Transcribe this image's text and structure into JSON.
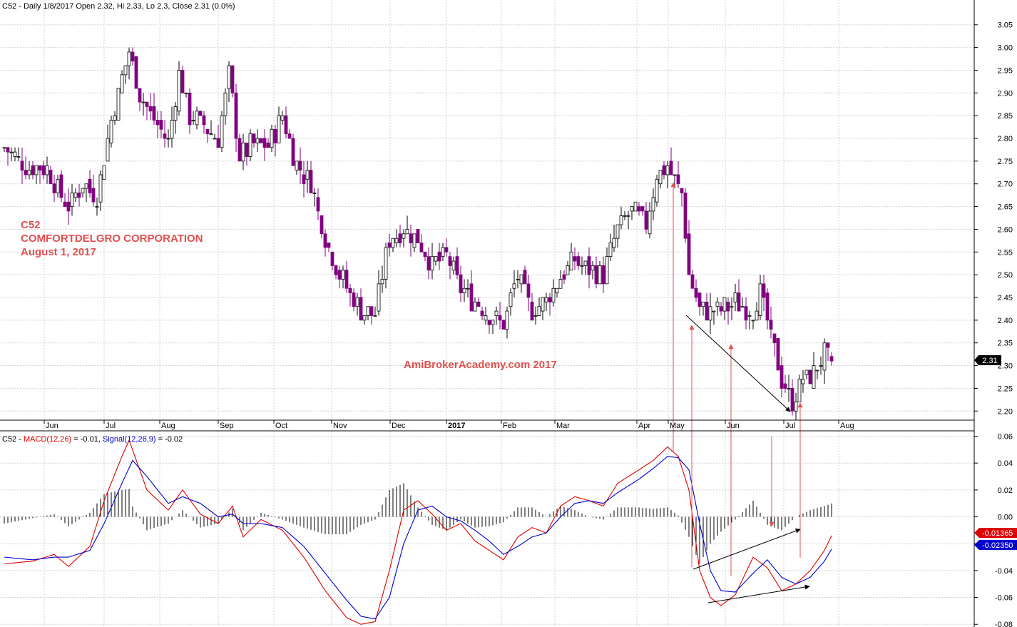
{
  "price_header": "C52 - Daily 1/8/2017 Open 2.32, Hi 2.33, Lo 2.3, Close 2.31 (0.0%)",
  "annotation": {
    "line1": "C52",
    "line2": "COMFORTDELGRO CORPORATION",
    "line3": "August 1, 2017",
    "watermark": "AmiBrokerAcademy.com  2017"
  },
  "macd_header": {
    "prefix": "C52 - ",
    "macd_label": "MACD(12,26)",
    "macd_value": " = -0.01, ",
    "signal_label": "Signal(12,26,9)",
    "signal_value": " = -0.02"
  },
  "colors": {
    "up_bar": "#000000",
    "down_bar": "#800080",
    "macd_line": "#dd0000",
    "signal_line": "#0000cc",
    "histogram": "#000000",
    "grid": "#d0d0d0",
    "arrow_red": "#e05050",
    "arrow_black": "#000000"
  },
  "chart_data": [
    {
      "type": "candlestick",
      "title": "C52 - Daily 1/8/2017 Open 2.32, Hi 2.33, Lo 2.3, Close 2.31 (0.0%)",
      "x_tick_labels": [
        "Jun",
        "Jul",
        "Aug",
        "Sep",
        "Oct",
        "Nov",
        "Dec",
        "2017",
        "Feb",
        "Mar",
        "Apr",
        "May",
        "Jun",
        "Jul",
        "Aug"
      ],
      "y_ticks": [
        2.2,
        2.25,
        2.3,
        2.35,
        2.4,
        2.45,
        2.5,
        2.55,
        2.6,
        2.65,
        2.7,
        2.75,
        2.8,
        2.85,
        2.9,
        2.95,
        3.0,
        3.05
      ],
      "ylim": [
        2.18,
        3.07
      ],
      "last_close_label": "2.31",
      "last_close": 2.31,
      "last_bar": {
        "open": 2.32,
        "high": 2.33,
        "low": 2.3,
        "close": 2.31
      },
      "close_path": [
        [
          0,
          2.78
        ],
        [
          6,
          2.74
        ],
        [
          12,
          2.73
        ],
        [
          18,
          2.65
        ],
        [
          22,
          2.7
        ],
        [
          26,
          2.67
        ],
        [
          30,
          2.84
        ],
        [
          35,
          2.99
        ],
        [
          38,
          2.9
        ],
        [
          42,
          2.84
        ],
        [
          46,
          2.79
        ],
        [
          49,
          2.94
        ],
        [
          52,
          2.85
        ],
        [
          56,
          2.83
        ],
        [
          60,
          2.8
        ],
        [
          63,
          2.94
        ],
        [
          66,
          2.76
        ],
        [
          70,
          2.79
        ],
        [
          74,
          2.78
        ],
        [
          78,
          2.85
        ],
        [
          82,
          2.74
        ],
        [
          86,
          2.7
        ],
        [
          90,
          2.58
        ],
        [
          93,
          2.52
        ],
        [
          96,
          2.47
        ],
        [
          100,
          2.42
        ],
        [
          104,
          2.41
        ],
        [
          108,
          2.58
        ],
        [
          112,
          2.6
        ],
        [
          116,
          2.58
        ],
        [
          120,
          2.52
        ],
        [
          124,
          2.54
        ],
        [
          128,
          2.47
        ],
        [
          132,
          2.44
        ],
        [
          136,
          2.41
        ],
        [
          140,
          2.39
        ],
        [
          144,
          2.5
        ],
        [
          148,
          2.42
        ],
        [
          152,
          2.44
        ],
        [
          156,
          2.5
        ],
        [
          160,
          2.53
        ],
        [
          164,
          2.51
        ],
        [
          168,
          2.5
        ],
        [
          172,
          2.6
        ],
        [
          176,
          2.64
        ],
        [
          180,
          2.61
        ],
        [
          183,
          2.72
        ],
        [
          186,
          2.74
        ],
        [
          188,
          2.71
        ],
        [
          190,
          2.68
        ],
        [
          192,
          2.5
        ],
        [
          195,
          2.42
        ],
        [
          200,
          2.42
        ],
        [
          205,
          2.44
        ],
        [
          210,
          2.42
        ],
        [
          212,
          2.46
        ],
        [
          215,
          2.36
        ],
        [
          218,
          2.27
        ],
        [
          221,
          2.22
        ],
        [
          224,
          2.27
        ],
        [
          227,
          2.28
        ],
        [
          230,
          2.33
        ],
        [
          232,
          2.3
        ]
      ]
    },
    {
      "type": "line",
      "title": "C52 - MACD(12,26) = -0.01, Signal(12,26,9) = -0.02",
      "y_ticks": [
        -0.08,
        -0.06,
        -0.04,
        -0.02,
        0.0,
        0.02,
        0.04,
        0.06
      ],
      "ylim": [
        -0.082,
        0.064
      ],
      "last_macd_label": "-0.01365",
      "last_signal_label": "-0.02350",
      "last_macd": -0.01365,
      "last_signal": -0.0235,
      "series": [
        {
          "name": "MACD(12,26)",
          "values": [
            [
              0,
              -0.035
            ],
            [
              8,
              -0.033
            ],
            [
              14,
              -0.028
            ],
            [
              18,
              -0.037
            ],
            [
              24,
              -0.022
            ],
            [
              28,
              0.012
            ],
            [
              33,
              0.045
            ],
            [
              35,
              0.057
            ],
            [
              40,
              0.02
            ],
            [
              46,
              0.005
            ],
            [
              50,
              0.02
            ],
            [
              55,
              0.002
            ],
            [
              60,
              -0.005
            ],
            [
              64,
              0.008
            ],
            [
              67,
              -0.015
            ],
            [
              72,
              -0.002
            ],
            [
              78,
              -0.01
            ],
            [
              84,
              -0.03
            ],
            [
              90,
              -0.055
            ],
            [
              96,
              -0.075
            ],
            [
              100,
              -0.08
            ],
            [
              104,
              -0.078
            ],
            [
              108,
              -0.04
            ],
            [
              112,
              0.005
            ],
            [
              116,
              0.012
            ],
            [
              120,
              0.002
            ],
            [
              124,
              -0.01
            ],
            [
              128,
              -0.005
            ],
            [
              132,
              -0.018
            ],
            [
              136,
              -0.025
            ],
            [
              140,
              -0.032
            ],
            [
              144,
              -0.015
            ],
            [
              148,
              -0.008
            ],
            [
              152,
              -0.012
            ],
            [
              156,
              0.008
            ],
            [
              160,
              0.015
            ],
            [
              164,
              0.012
            ],
            [
              168,
              0.008
            ],
            [
              172,
              0.025
            ],
            [
              178,
              0.035
            ],
            [
              182,
              0.042
            ],
            [
              186,
              0.052
            ],
            [
              189,
              0.045
            ],
            [
              192,
              0.02
            ],
            [
              195,
              -0.04
            ],
            [
              198,
              -0.06
            ],
            [
              201,
              -0.066
            ],
            [
              205,
              -0.058
            ],
            [
              210,
              -0.03
            ],
            [
              214,
              -0.038
            ],
            [
              218,
              -0.055
            ],
            [
              222,
              -0.05
            ],
            [
              226,
              -0.04
            ],
            [
              230,
              -0.025
            ],
            [
              232,
              -0.014
            ]
          ]
        },
        {
          "name": "Signal(12,26,9)",
          "values": [
            [
              0,
              -0.03
            ],
            [
              8,
              -0.032
            ],
            [
              14,
              -0.03
            ],
            [
              18,
              -0.03
            ],
            [
              24,
              -0.025
            ],
            [
              28,
              -0.005
            ],
            [
              33,
              0.025
            ],
            [
              36,
              0.042
            ],
            [
              40,
              0.03
            ],
            [
              46,
              0.01
            ],
            [
              50,
              0.015
            ],
            [
              55,
              0.01
            ],
            [
              60,
              0.0
            ],
            [
              64,
              0.002
            ],
            [
              67,
              -0.005
            ],
            [
              72,
              -0.005
            ],
            [
              78,
              -0.008
            ],
            [
              84,
              -0.022
            ],
            [
              90,
              -0.042
            ],
            [
              96,
              -0.062
            ],
            [
              100,
              -0.074
            ],
            [
              104,
              -0.076
            ],
            [
              108,
              -0.06
            ],
            [
              112,
              -0.02
            ],
            [
              116,
              0.005
            ],
            [
              120,
              0.008
            ],
            [
              124,
              0.0
            ],
            [
              128,
              -0.003
            ],
            [
              132,
              -0.01
            ],
            [
              136,
              -0.018
            ],
            [
              140,
              -0.028
            ],
            [
              144,
              -0.022
            ],
            [
              148,
              -0.015
            ],
            [
              152,
              -0.012
            ],
            [
              156,
              0.0
            ],
            [
              160,
              0.01
            ],
            [
              164,
              0.012
            ],
            [
              168,
              0.01
            ],
            [
              172,
              0.018
            ],
            [
              178,
              0.028
            ],
            [
              182,
              0.036
            ],
            [
              186,
              0.045
            ],
            [
              189,
              0.044
            ],
            [
              192,
              0.035
            ],
            [
              195,
              -0.005
            ],
            [
              198,
              -0.04
            ],
            [
              201,
              -0.055
            ],
            [
              205,
              -0.056
            ],
            [
              210,
              -0.042
            ],
            [
              214,
              -0.032
            ],
            [
              218,
              -0.045
            ],
            [
              222,
              -0.05
            ],
            [
              226,
              -0.045
            ],
            [
              230,
              -0.033
            ],
            [
              232,
              -0.024
            ]
          ]
        }
      ]
    }
  ]
}
